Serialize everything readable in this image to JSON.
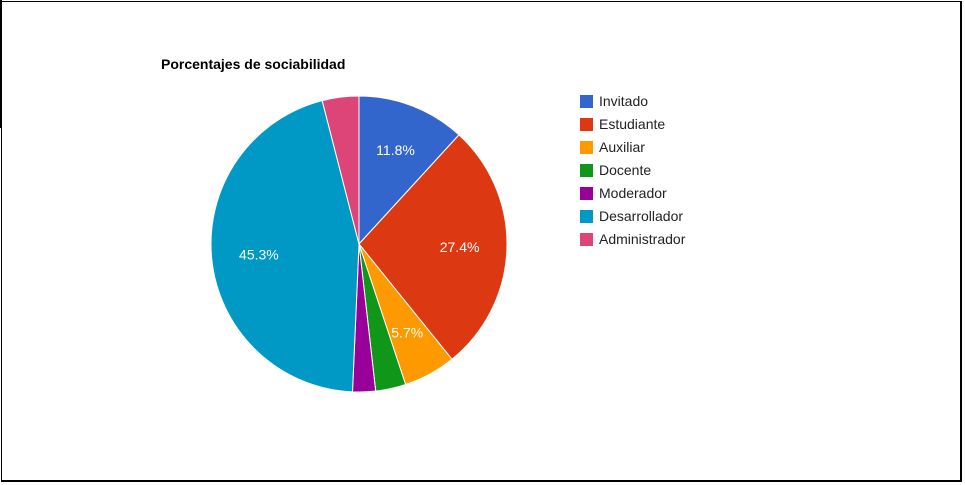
{
  "chart_data": {
    "type": "pie",
    "title": "Porcentajes de sociabilidad",
    "legend_position": "right",
    "series": [
      {
        "labels": [
          "Invitado",
          "Estudiante",
          "Auxiliar",
          "Docente",
          "Moderador",
          "Desarrollador",
          "Administrador"
        ],
        "values": [
          11.8,
          27.4,
          5.7,
          3.3,
          2.5,
          45.3,
          4.0
        ],
        "value_labels": [
          "11.8%",
          "27.4%",
          "5.7%",
          "",
          "",
          "45.3%",
          ""
        ],
        "colors": [
          "#3366cc",
          "#dc3912",
          "#ff9900",
          "#109618",
          "#990099",
          "#0099c6",
          "#dd4477"
        ]
      }
    ]
  }
}
